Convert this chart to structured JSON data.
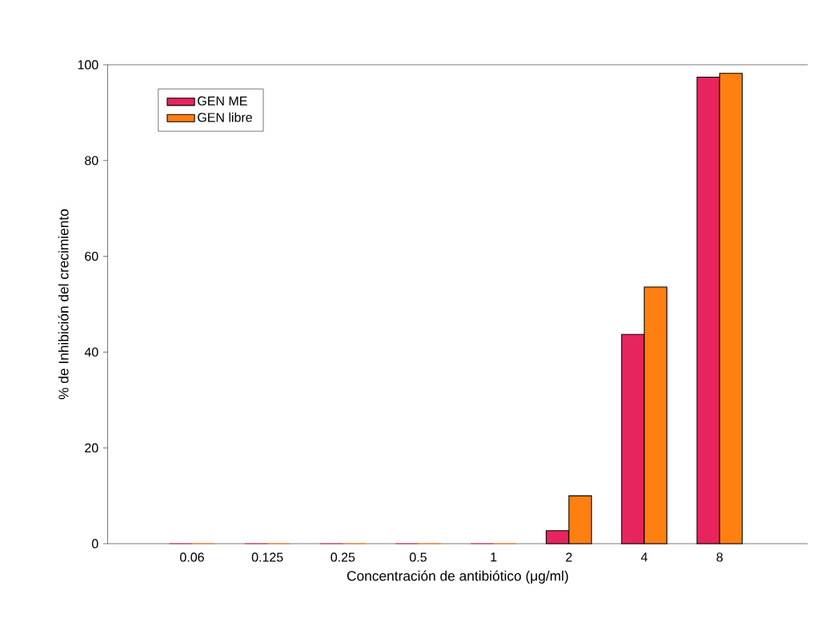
{
  "chart_data": {
    "type": "bar",
    "xlabel": "Concentración de antibiótico (μg/ml)",
    "ylabel": "% de Inhibición del crecimiento",
    "categories": [
      "0.06",
      "0.125",
      "0.25",
      "0.5",
      "1",
      "2",
      "4",
      "8"
    ],
    "series": [
      {
        "name": "GEN ME",
        "color": "#e8245e",
        "values": [
          0,
          0,
          0,
          0,
          0,
          2.7,
          43.7,
          97.4
        ]
      },
      {
        "name": "GEN libre",
        "color": "#ff7f10",
        "values": [
          0,
          0,
          0,
          0,
          0,
          10.0,
          53.6,
          98.2
        ]
      }
    ],
    "ylim": [
      0,
      100
    ],
    "yticks": [
      0,
      20,
      40,
      60,
      80,
      100
    ],
    "legend": "top left"
  }
}
